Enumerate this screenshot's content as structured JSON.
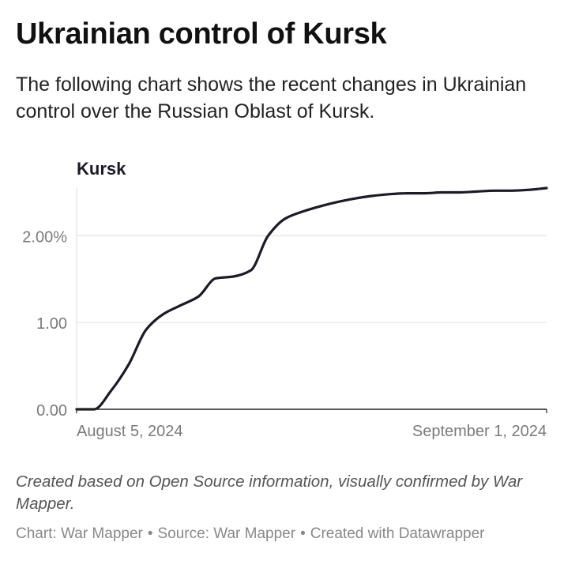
{
  "header": {
    "title": "Ukrainian control of Kursk",
    "description": "The following chart shows the recent changes in Ukrainian control over the Russian Oblast of Kursk."
  },
  "chart_data": {
    "type": "line",
    "title": "Kursk",
    "xlabel": "",
    "ylabel": "",
    "x_tick_labels": [
      "August 5, 2024",
      "September 1, 2024"
    ],
    "y_tick_labels": [
      "0.00",
      "1.00",
      "2.00%"
    ],
    "y_ticks": [
      0,
      1,
      2
    ],
    "ylim": [
      0,
      2.55
    ],
    "xlim": [
      "2024-08-05",
      "2024-09-01"
    ],
    "grid": "horizontal",
    "line_color": "#1b1b27",
    "series": [
      {
        "x": [
          "2024-08-05",
          "2024-08-06",
          "2024-08-07",
          "2024-08-08",
          "2024-08-09",
          "2024-08-10",
          "2024-08-11",
          "2024-08-12",
          "2024-08-13",
          "2024-08-14",
          "2024-08-15",
          "2024-08-16",
          "2024-08-17",
          "2024-08-18",
          "2024-08-19",
          "2024-08-20",
          "2024-08-21",
          "2024-08-22",
          "2024-08-23",
          "2024-08-24",
          "2024-08-25",
          "2024-08-26",
          "2024-08-27",
          "2024-08-28",
          "2024-08-29",
          "2024-08-30",
          "2024-08-31",
          "2024-09-01"
        ],
        "values": [
          0.0,
          0.0,
          0.22,
          0.52,
          0.92,
          1.1,
          1.2,
          1.3,
          1.51,
          1.53,
          1.6,
          2.0,
          2.2,
          2.28,
          2.34,
          2.39,
          2.43,
          2.46,
          2.48,
          2.49,
          2.49,
          2.5,
          2.5,
          2.51,
          2.52,
          2.52,
          2.53,
          2.55
        ]
      }
    ]
  },
  "notes": "Created based on Open Source information, visually confirmed by War Mapper.",
  "footer": {
    "chart_credit": "Chart: War Mapper",
    "source": "Source: War Mapper",
    "tool": "Created with Datawrapper"
  }
}
